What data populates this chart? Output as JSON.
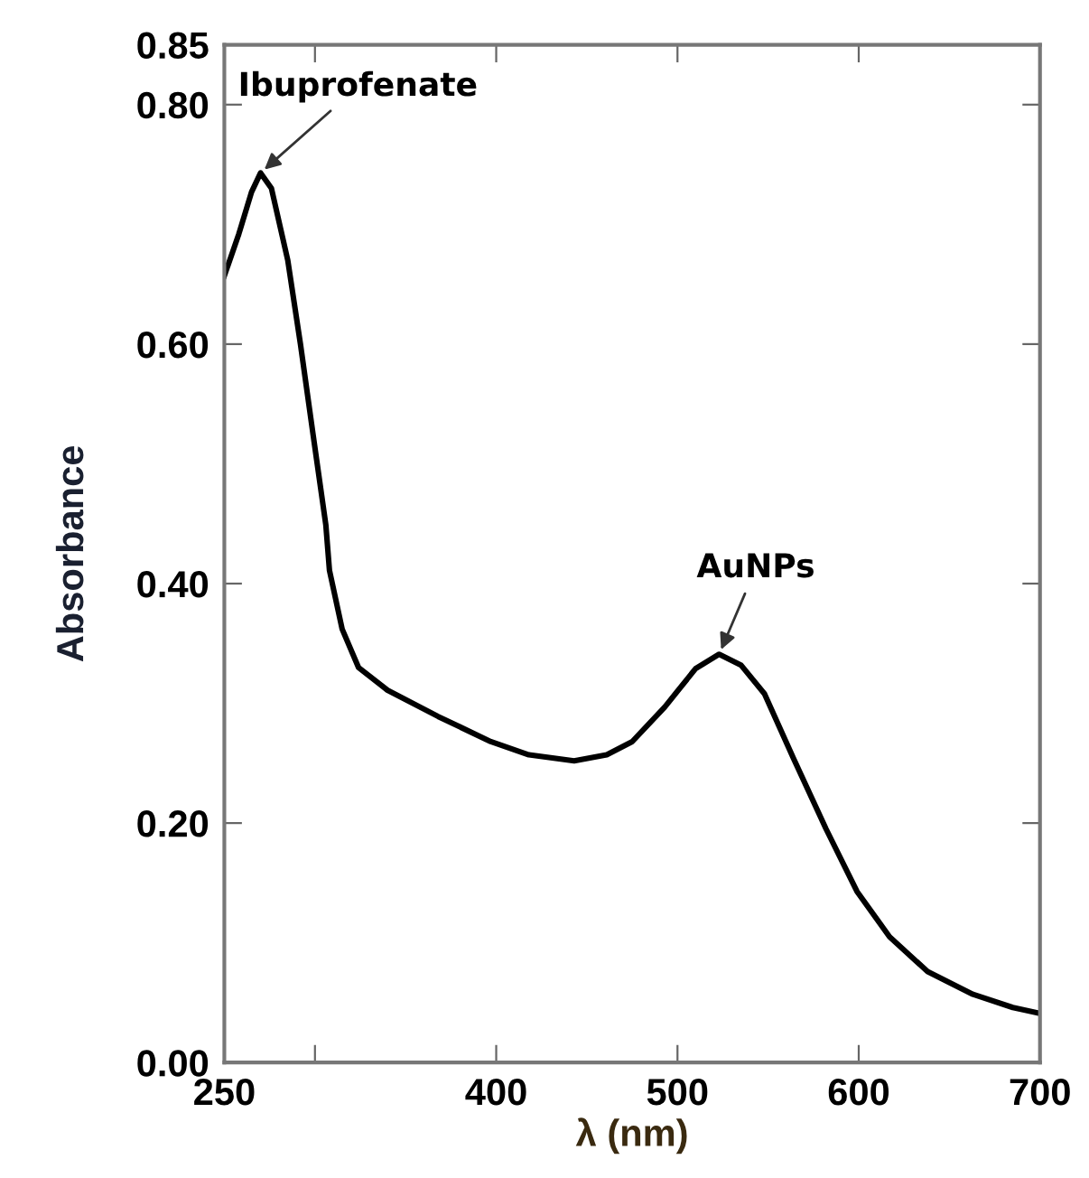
{
  "chart_data": {
    "type": "line",
    "xlabel": "λ (nm)",
    "ylabel": "Absorbance",
    "x": [
      250,
      258,
      265,
      270,
      276,
      285,
      292,
      299,
      306,
      308,
      315,
      324,
      340,
      368,
      397,
      418,
      443,
      461,
      475,
      493,
      510,
      523,
      535,
      548,
      564,
      582,
      599,
      617,
      638,
      663,
      685,
      700
    ],
    "series": [
      {
        "color": "#000000",
        "values": [
          0.657,
          0.692,
          0.727,
          0.743,
          0.73,
          0.67,
          0.6,
          0.524,
          0.449,
          0.411,
          0.362,
          0.33,
          0.311,
          0.289,
          0.268,
          0.257,
          0.252,
          0.257,
          0.268,
          0.297,
          0.329,
          0.341,
          0.332,
          0.308,
          0.254,
          0.195,
          0.143,
          0.105,
          0.076,
          0.057,
          0.046,
          0.041
        ]
      }
    ],
    "xlim": [
      250,
      700
    ],
    "xticks": [
      250,
      {
        "value": 300,
        "label": null
      },
      400,
      500,
      600,
      700
    ],
    "ylim": [
      0,
      0.85
    ],
    "yticks": [
      {
        "value": 0,
        "label": "0.00"
      },
      {
        "value": 0.2,
        "label": "0.20"
      },
      {
        "value": 0.4,
        "label": "0.40"
      },
      {
        "value": 0.6,
        "label": "0.60"
      },
      {
        "value": 0.8,
        "label": "0.80"
      },
      {
        "value": 0.85,
        "label": "0.85"
      }
    ],
    "annotations": [
      {
        "text": "Ibuprofenate",
        "x": 270,
        "y": 0.743
      },
      {
        "text": "AuNPs",
        "x": 523,
        "y": 0.341
      }
    ],
    "marker": "none",
    "line_style": "solid"
  }
}
